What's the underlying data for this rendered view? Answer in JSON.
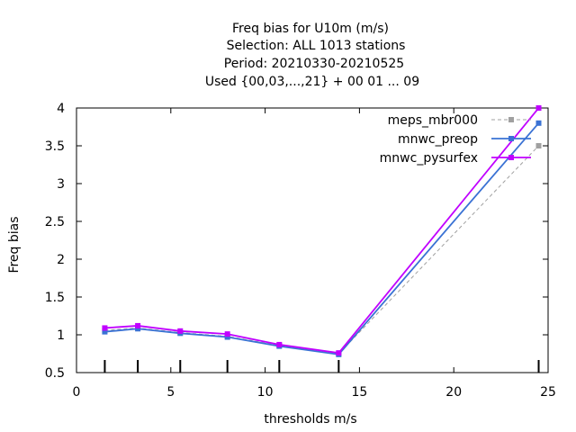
{
  "chart_data": {
    "type": "line",
    "title_lines": [
      "Freq bias  for U10m (m/s)",
      "Selection: ALL   1013 stations",
      "Period: 20210330-20210525",
      "Used {00,03,...,21} + 00 01 ... 09"
    ],
    "xlabel": "thresholds m/s",
    "ylabel": "Freq bias",
    "xlim": [
      0,
      25
    ],
    "ylim": [
      0.5,
      4
    ],
    "xticks": [
      0,
      5,
      10,
      15,
      20,
      25
    ],
    "yticks": [
      0.5,
      1,
      1.5,
      2,
      2.5,
      3,
      3.5,
      4
    ],
    "xtick_labels": [
      "0",
      "5",
      "10",
      "15",
      "20",
      "25"
    ],
    "ytick_labels": [
      "0.5",
      "1",
      "1.5",
      "2",
      "2.5",
      "3",
      "3.5",
      "4"
    ],
    "grid": false,
    "legend_position": "top-right",
    "threshold_markers": [
      1.5,
      3.25,
      5.5,
      8.0,
      10.75,
      13.9,
      24.5
    ],
    "series": [
      {
        "name": "meps_mbr000",
        "color": "#a0a0a0",
        "dash": true,
        "x": [
          1.5,
          3.25,
          5.5,
          8.0,
          10.75,
          13.9,
          24.5
        ],
        "y": [
          1.06,
          1.09,
          1.03,
          0.98,
          0.86,
          0.75,
          3.5
        ]
      },
      {
        "name": "mnwc_preop",
        "color": "#3a72d4",
        "dash": false,
        "x": [
          1.5,
          3.25,
          5.5,
          8.0,
          10.75,
          13.9,
          24.5
        ],
        "y": [
          1.04,
          1.08,
          1.02,
          0.97,
          0.85,
          0.74,
          3.8
        ]
      },
      {
        "name": "mnwc_pysurfex",
        "color": "#c000ff",
        "dash": false,
        "x": [
          1.5,
          3.25,
          5.5,
          8.0,
          10.75,
          13.9,
          24.5
        ],
        "y": [
          1.09,
          1.12,
          1.05,
          1.01,
          0.87,
          0.76,
          4.0
        ]
      }
    ]
  }
}
